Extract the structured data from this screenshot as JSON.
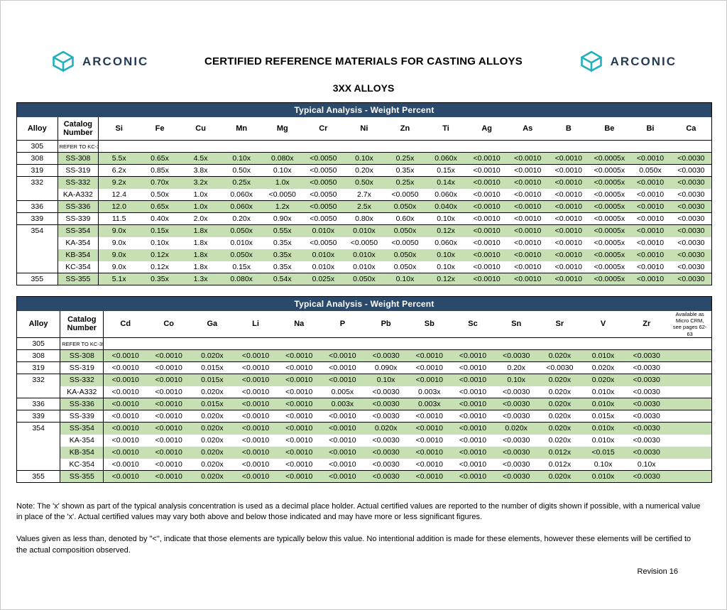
{
  "header": {
    "logo_text": "ARCONIC",
    "title": "CERTIFIED REFERENCE MATERIALS FOR CASTING ALLOYS",
    "subtitle": "3XX ALLOYS"
  },
  "table1": {
    "banner": "Typical Analysis - Weight Percent",
    "columns": [
      "Alloy",
      "Catalog Number",
      "Si",
      "Fe",
      "Cu",
      "Mn",
      "Mg",
      "Cr",
      "Ni",
      "Zn",
      "Ti",
      "Ag",
      "As",
      "B",
      "Be",
      "Bi",
      "Ca"
    ],
    "rows": [
      {
        "alloy": "305",
        "catalog": "REFER TO KC-355",
        "refer": true,
        "group": true,
        "shade": false,
        "values": []
      },
      {
        "alloy": "308",
        "catalog": "SS-308",
        "group": true,
        "shade": true,
        "values": [
          "5.5x",
          "0.65x",
          "4.5x",
          "0.10x",
          "0.080x",
          "<0.0050",
          "0.10x",
          "0.25x",
          "0.060x",
          "<0.0010",
          "<0.0010",
          "<0.0010",
          "<0.0005x",
          "<0.0010",
          "<0.0030"
        ]
      },
      {
        "alloy": "319",
        "catalog": "SS-319",
        "group": true,
        "shade": false,
        "values": [
          "6.2x",
          "0.85x",
          "3.8x",
          "0.50x",
          "0.10x",
          "<0.0050",
          "0.20x",
          "0.35x",
          "0.15x",
          "<0.0010",
          "<0.0010",
          "<0.0010",
          "<0.0005x",
          "0.050x",
          "<0.0030"
        ]
      },
      {
        "alloy": "332",
        "catalog": "SS-332",
        "group": true,
        "shade": true,
        "values": [
          "9.2x",
          "0.70x",
          "3.2x",
          "0.25x",
          "1.0x",
          "<0.0050",
          "0.50x",
          "0.25x",
          "0.14x",
          "<0.0010",
          "<0.0010",
          "<0.0010",
          "<0.0005x",
          "<0.0010",
          "<0.0030"
        ]
      },
      {
        "alloy": "",
        "catalog": "KA-A332",
        "shade": false,
        "values": [
          "12.4",
          "0.50x",
          "1.0x",
          "0.060x",
          "<0.0050",
          "<0.0050",
          "2.7x",
          "<0.0050",
          "0.060x",
          "<0.0010",
          "<0.0010",
          "<0.0010",
          "<0.0005x",
          "<0.0010",
          "<0.0030"
        ]
      },
      {
        "alloy": "336",
        "catalog": "SS-336",
        "group": true,
        "shade": true,
        "values": [
          "12.0",
          "0.65x",
          "1.0x",
          "0.060x",
          "1.2x",
          "<0.0050",
          "2.5x",
          "0.050x",
          "0.040x",
          "<0.0010",
          "<0.0010",
          "<0.0010",
          "<0.0005x",
          "<0.0010",
          "<0.0030"
        ]
      },
      {
        "alloy": "339",
        "catalog": "SS-339",
        "group": true,
        "shade": false,
        "values": [
          "11.5",
          "0.40x",
          "2.0x",
          "0.20x",
          "0.90x",
          "<0.0050",
          "0.80x",
          "0.60x",
          "0.10x",
          "<0.0010",
          "<0.0010",
          "<0.0010",
          "<0.0005x",
          "<0.0010",
          "<0.0030"
        ]
      },
      {
        "alloy": "354",
        "catalog": "SS-354",
        "group": true,
        "shade": true,
        "values": [
          "9.0x",
          "0.15x",
          "1.8x",
          "0.050x",
          "0.55x",
          "0.010x",
          "0.010x",
          "0.050x",
          "0.12x",
          "<0.0010",
          "<0.0010",
          "<0.0010",
          "<0.0005x",
          "<0.0010",
          "<0.0030"
        ]
      },
      {
        "alloy": "",
        "catalog": "KA-354",
        "shade": false,
        "values": [
          "9.0x",
          "0.10x",
          "1.8x",
          "0.010x",
          "0.35x",
          "<0.0050",
          "<0.0050",
          "<0.0050",
          "0.060x",
          "<0.0010",
          "<0.0010",
          "<0.0010",
          "<0.0005x",
          "<0.0010",
          "<0.0030"
        ]
      },
      {
        "alloy": "",
        "catalog": "KB-354",
        "shade": true,
        "values": [
          "9.0x",
          "0.12x",
          "1.8x",
          "0.050x",
          "0.35x",
          "0.010x",
          "0.010x",
          "0.050x",
          "0.10x",
          "<0.0010",
          "<0.0010",
          "<0.0010",
          "<0.0005x",
          "<0.0010",
          "<0.0030"
        ]
      },
      {
        "alloy": "",
        "catalog": "KC-354",
        "shade": false,
        "values": [
          "9.0x",
          "0.12x",
          "1.8x",
          "0.15x",
          "0.35x",
          "0.010x",
          "0.010x",
          "0.050x",
          "0.10x",
          "<0.0010",
          "<0.0010",
          "<0.0010",
          "<0.0005x",
          "<0.0010",
          "<0.0030"
        ]
      },
      {
        "alloy": "355",
        "catalog": "SS-355",
        "group": true,
        "shade": true,
        "values": [
          "5.1x",
          "0.35x",
          "1.3x",
          "0.080x",
          "0.54x",
          "0.025x",
          "0.050x",
          "0.10x",
          "0.12x",
          "<0.0010",
          "<0.0010",
          "<0.0010",
          "<0.0005x",
          "<0.0010",
          "<0.0030"
        ]
      }
    ]
  },
  "table2": {
    "banner": "Typical Analysis - Weight Percent",
    "last_col_note": true,
    "columns": [
      "Alloy",
      "Catalog Number",
      "Cd",
      "Co",
      "Ga",
      "Li",
      "Na",
      "P",
      "Pb",
      "Sb",
      "Sc",
      "Sn",
      "Sr",
      "V",
      "Zr",
      "Available as Micro CRM, see pages 62-63"
    ],
    "rows": [
      {
        "alloy": "305",
        "catalog": "REFER TO KC-355",
        "refer": true,
        "group": true,
        "shade": false,
        "values": []
      },
      {
        "alloy": "308",
        "catalog": "SS-308",
        "group": true,
        "shade": true,
        "values": [
          "<0.0010",
          "<0.0010",
          "0.020x",
          "<0.0010",
          "<0.0010",
          "<0.0010",
          "<0.0030",
          "<0.0010",
          "<0.0010",
          "<0.0030",
          "0.020x",
          "0.010x",
          "<0.0030"
        ]
      },
      {
        "alloy": "319",
        "catalog": "SS-319",
        "group": true,
        "shade": false,
        "values": [
          "<0.0010",
          "<0.0010",
          "0.015x",
          "<0.0010",
          "<0.0010",
          "<0.0010",
          "0.090x",
          "<0.0010",
          "<0.0010",
          "0.20x",
          "<0.0030",
          "0.020x",
          "<0.0030"
        ]
      },
      {
        "alloy": "332",
        "catalog": "SS-332",
        "group": true,
        "shade": true,
        "values": [
          "<0.0010",
          "<0.0010",
          "0.015x",
          "<0.0010",
          "<0.0010",
          "<0.0010",
          "0.10x",
          "<0.0010",
          "<0.0010",
          "0.10x",
          "0.020x",
          "0.020x",
          "<0.0030"
        ]
      },
      {
        "alloy": "",
        "catalog": "KA-A332",
        "shade": false,
        "values": [
          "<0.0010",
          "<0.0010",
          "0.020x",
          "<0.0010",
          "<0.0010",
          "0.005x",
          "<0.0030",
          "0.003x",
          "<0.0010",
          "<0.0030",
          "0.020x",
          "0.010x",
          "<0.0030"
        ]
      },
      {
        "alloy": "336",
        "catalog": "SS-336",
        "group": true,
        "shade": true,
        "values": [
          "<0.0010",
          "<0.0010",
          "0.015x",
          "<0.0010",
          "<0.0010",
          "0.003x",
          "<0.0030",
          "0.003x",
          "<0.0010",
          "<0.0030",
          "0.020x",
          "0.010x",
          "<0.0030"
        ]
      },
      {
        "alloy": "339",
        "catalog": "SS-339",
        "group": true,
        "shade": false,
        "values": [
          "<0.0010",
          "<0.0010",
          "0.020x",
          "<0.0010",
          "<0.0010",
          "<0.0010",
          "<0.0030",
          "<0.0010",
          "<0.0010",
          "<0.0030",
          "0.020x",
          "0.015x",
          "<0.0030"
        ]
      },
      {
        "alloy": "354",
        "catalog": "SS-354",
        "group": true,
        "shade": true,
        "values": [
          "<0.0010",
          "<0.0010",
          "0.020x",
          "<0.0010",
          "<0.0010",
          "<0.0010",
          "0.020x",
          "<0.0010",
          "<0.0010",
          "0.020x",
          "0.020x",
          "0.010x",
          "<0.0030"
        ]
      },
      {
        "alloy": "",
        "catalog": "KA-354",
        "shade": false,
        "values": [
          "<0.0010",
          "<0.0010",
          "0.020x",
          "<0.0010",
          "<0.0010",
          "<0.0010",
          "<0.0030",
          "<0.0010",
          "<0.0010",
          "<0.0030",
          "0.020x",
          "0.010x",
          "<0.0030"
        ]
      },
      {
        "alloy": "",
        "catalog": "KB-354",
        "shade": true,
        "values": [
          "<0.0010",
          "<0.0010",
          "0.020x",
          "<0.0010",
          "<0.0010",
          "<0.0010",
          "<0.0030",
          "<0.0010",
          "<0.0010",
          "<0.0030",
          "0.012x",
          "<0.015",
          "<0.0030"
        ]
      },
      {
        "alloy": "",
        "catalog": "KC-354",
        "shade": false,
        "values": [
          "<0.0010",
          "<0.0010",
          "0.020x",
          "<0.0010",
          "<0.0010",
          "<0.0010",
          "<0.0030",
          "<0.0010",
          "<0.0010",
          "<0.0030",
          "0.012x",
          "0.10x",
          "0.10x"
        ]
      },
      {
        "alloy": "355",
        "catalog": "SS-355",
        "group": true,
        "shade": true,
        "values": [
          "<0.0010",
          "<0.0010",
          "0.020x",
          "<0.0010",
          "<0.0010",
          "<0.0010",
          "<0.0030",
          "<0.0010",
          "<0.0010",
          "<0.0030",
          "0.020x",
          "0.010x",
          "<0.0030"
        ]
      }
    ]
  },
  "notes": {
    "note1": "Note:  The 'x' shown as part of the typical analysis concentration is used as a decimal place holder.  Actual certified values are reported to the number of digits shown if possible, with a numerical value in place of the 'x'.  Actual certified values may vary both above and below those indicated and may have more or less significant figures.",
    "note2": "Values given as less than, denoted by \"<\", indicate that those elements are typically below this value.  No intentional addition is made for these elements, however  these elements will be certified to the actual composition observed.",
    "revision": "Revision 16"
  },
  "colors": {
    "navy": "#2b4a6b",
    "green": "#c6e0b4",
    "teal": "#22b0bd"
  }
}
